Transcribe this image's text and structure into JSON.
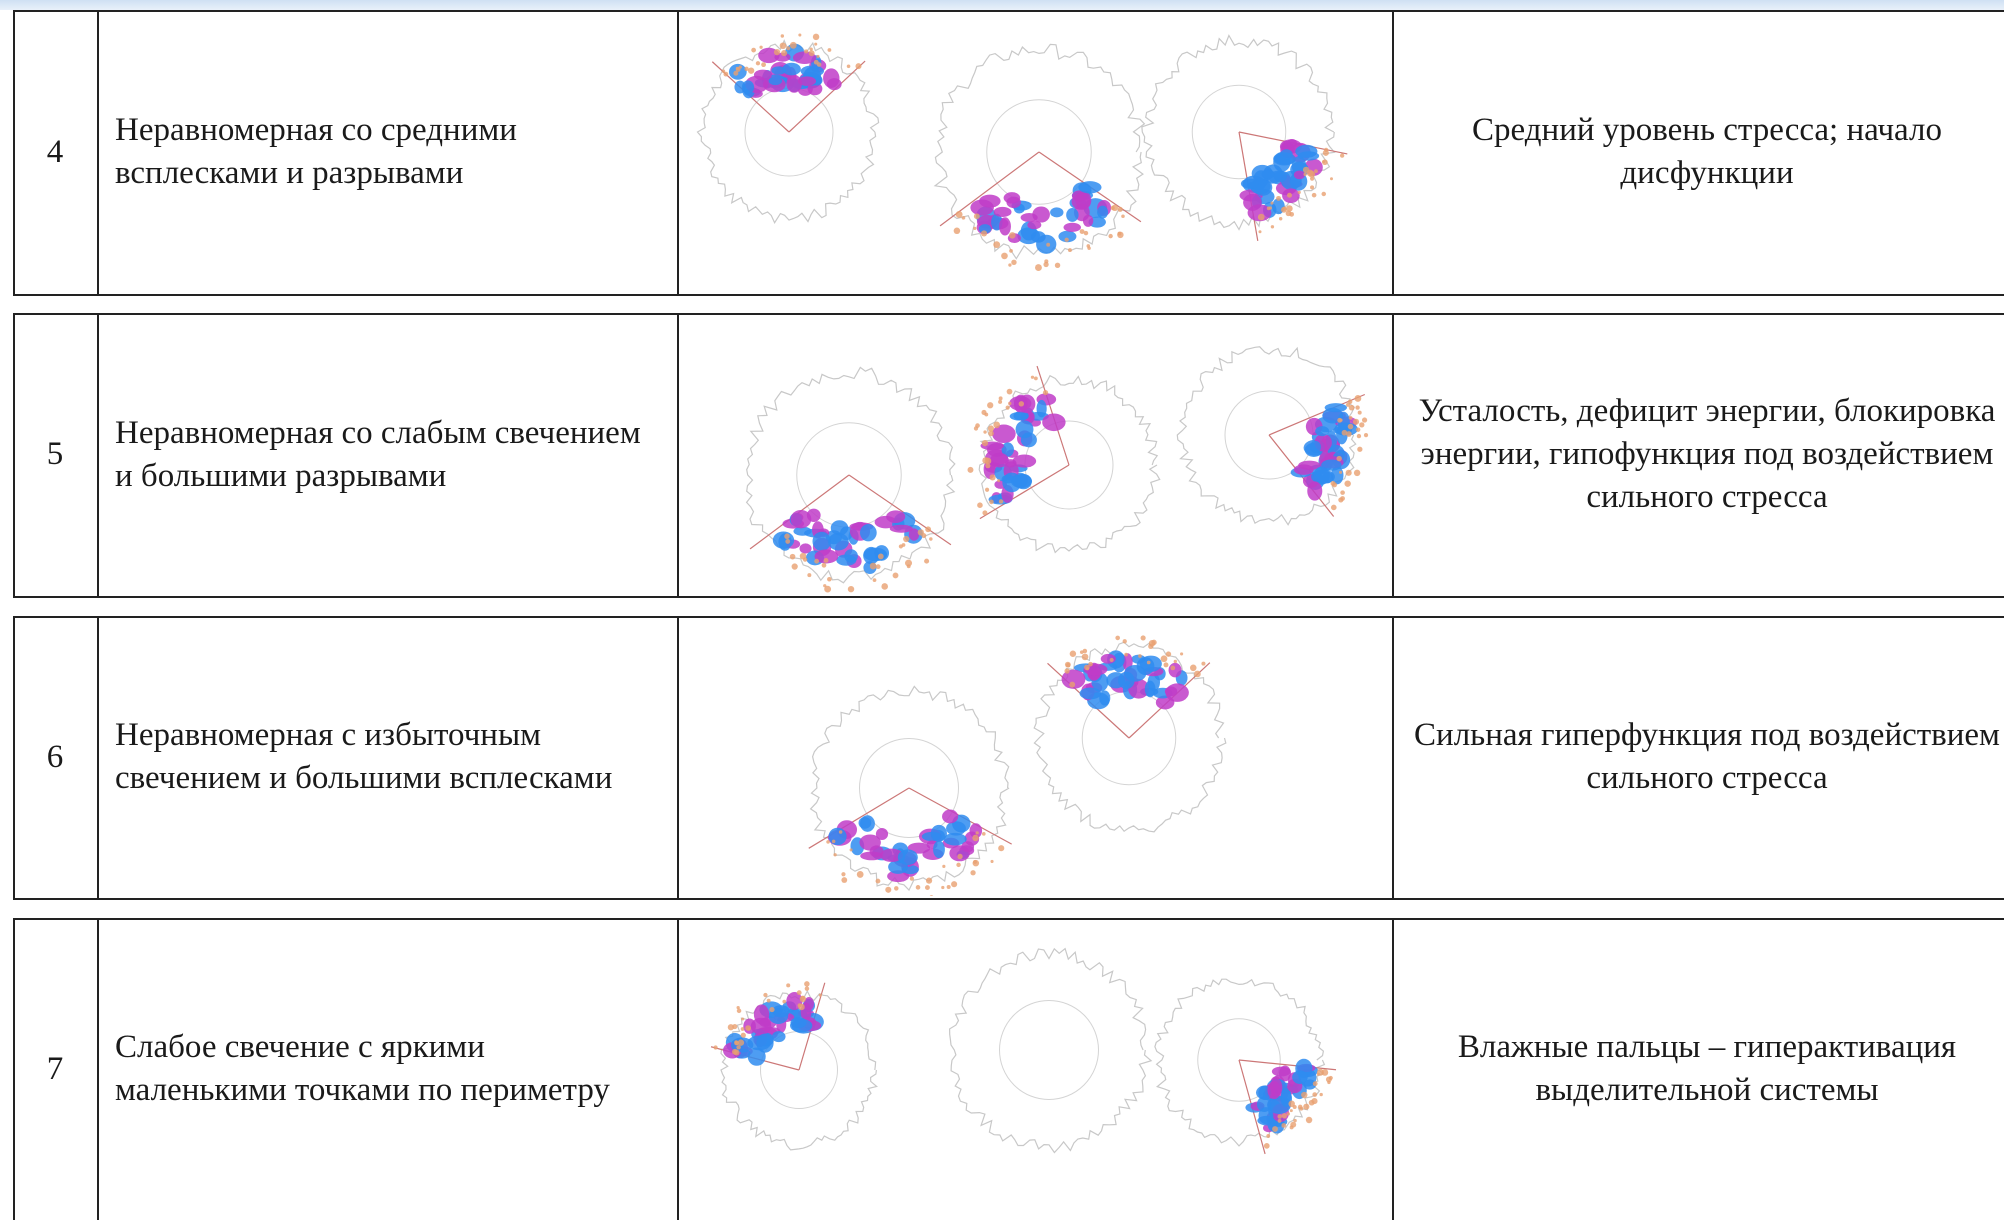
{
  "table": {
    "rows": [
      [
        "4",
        "Неравномерная со средними всплесками и разрывами",
        "Средний уровень стресса; начало дисфункции"
      ],
      [
        "5",
        "Неравномерная со слабым свечением и большими разрывами",
        "Усталость, дефицит энергии, блокировка энергии, гипофункция под воздействием сильного стресса"
      ],
      [
        "6",
        "Неравномерная с избыточным свечением и большими всплесками",
        "Сильная гиперфункция под воздействием сильного стресса"
      ],
      [
        "7",
        "Слабое свечение с яркими маленькими точками по периметру",
        "Влажные пальцы – гиперактивация выделительной системы"
      ]
    ]
  }
}
